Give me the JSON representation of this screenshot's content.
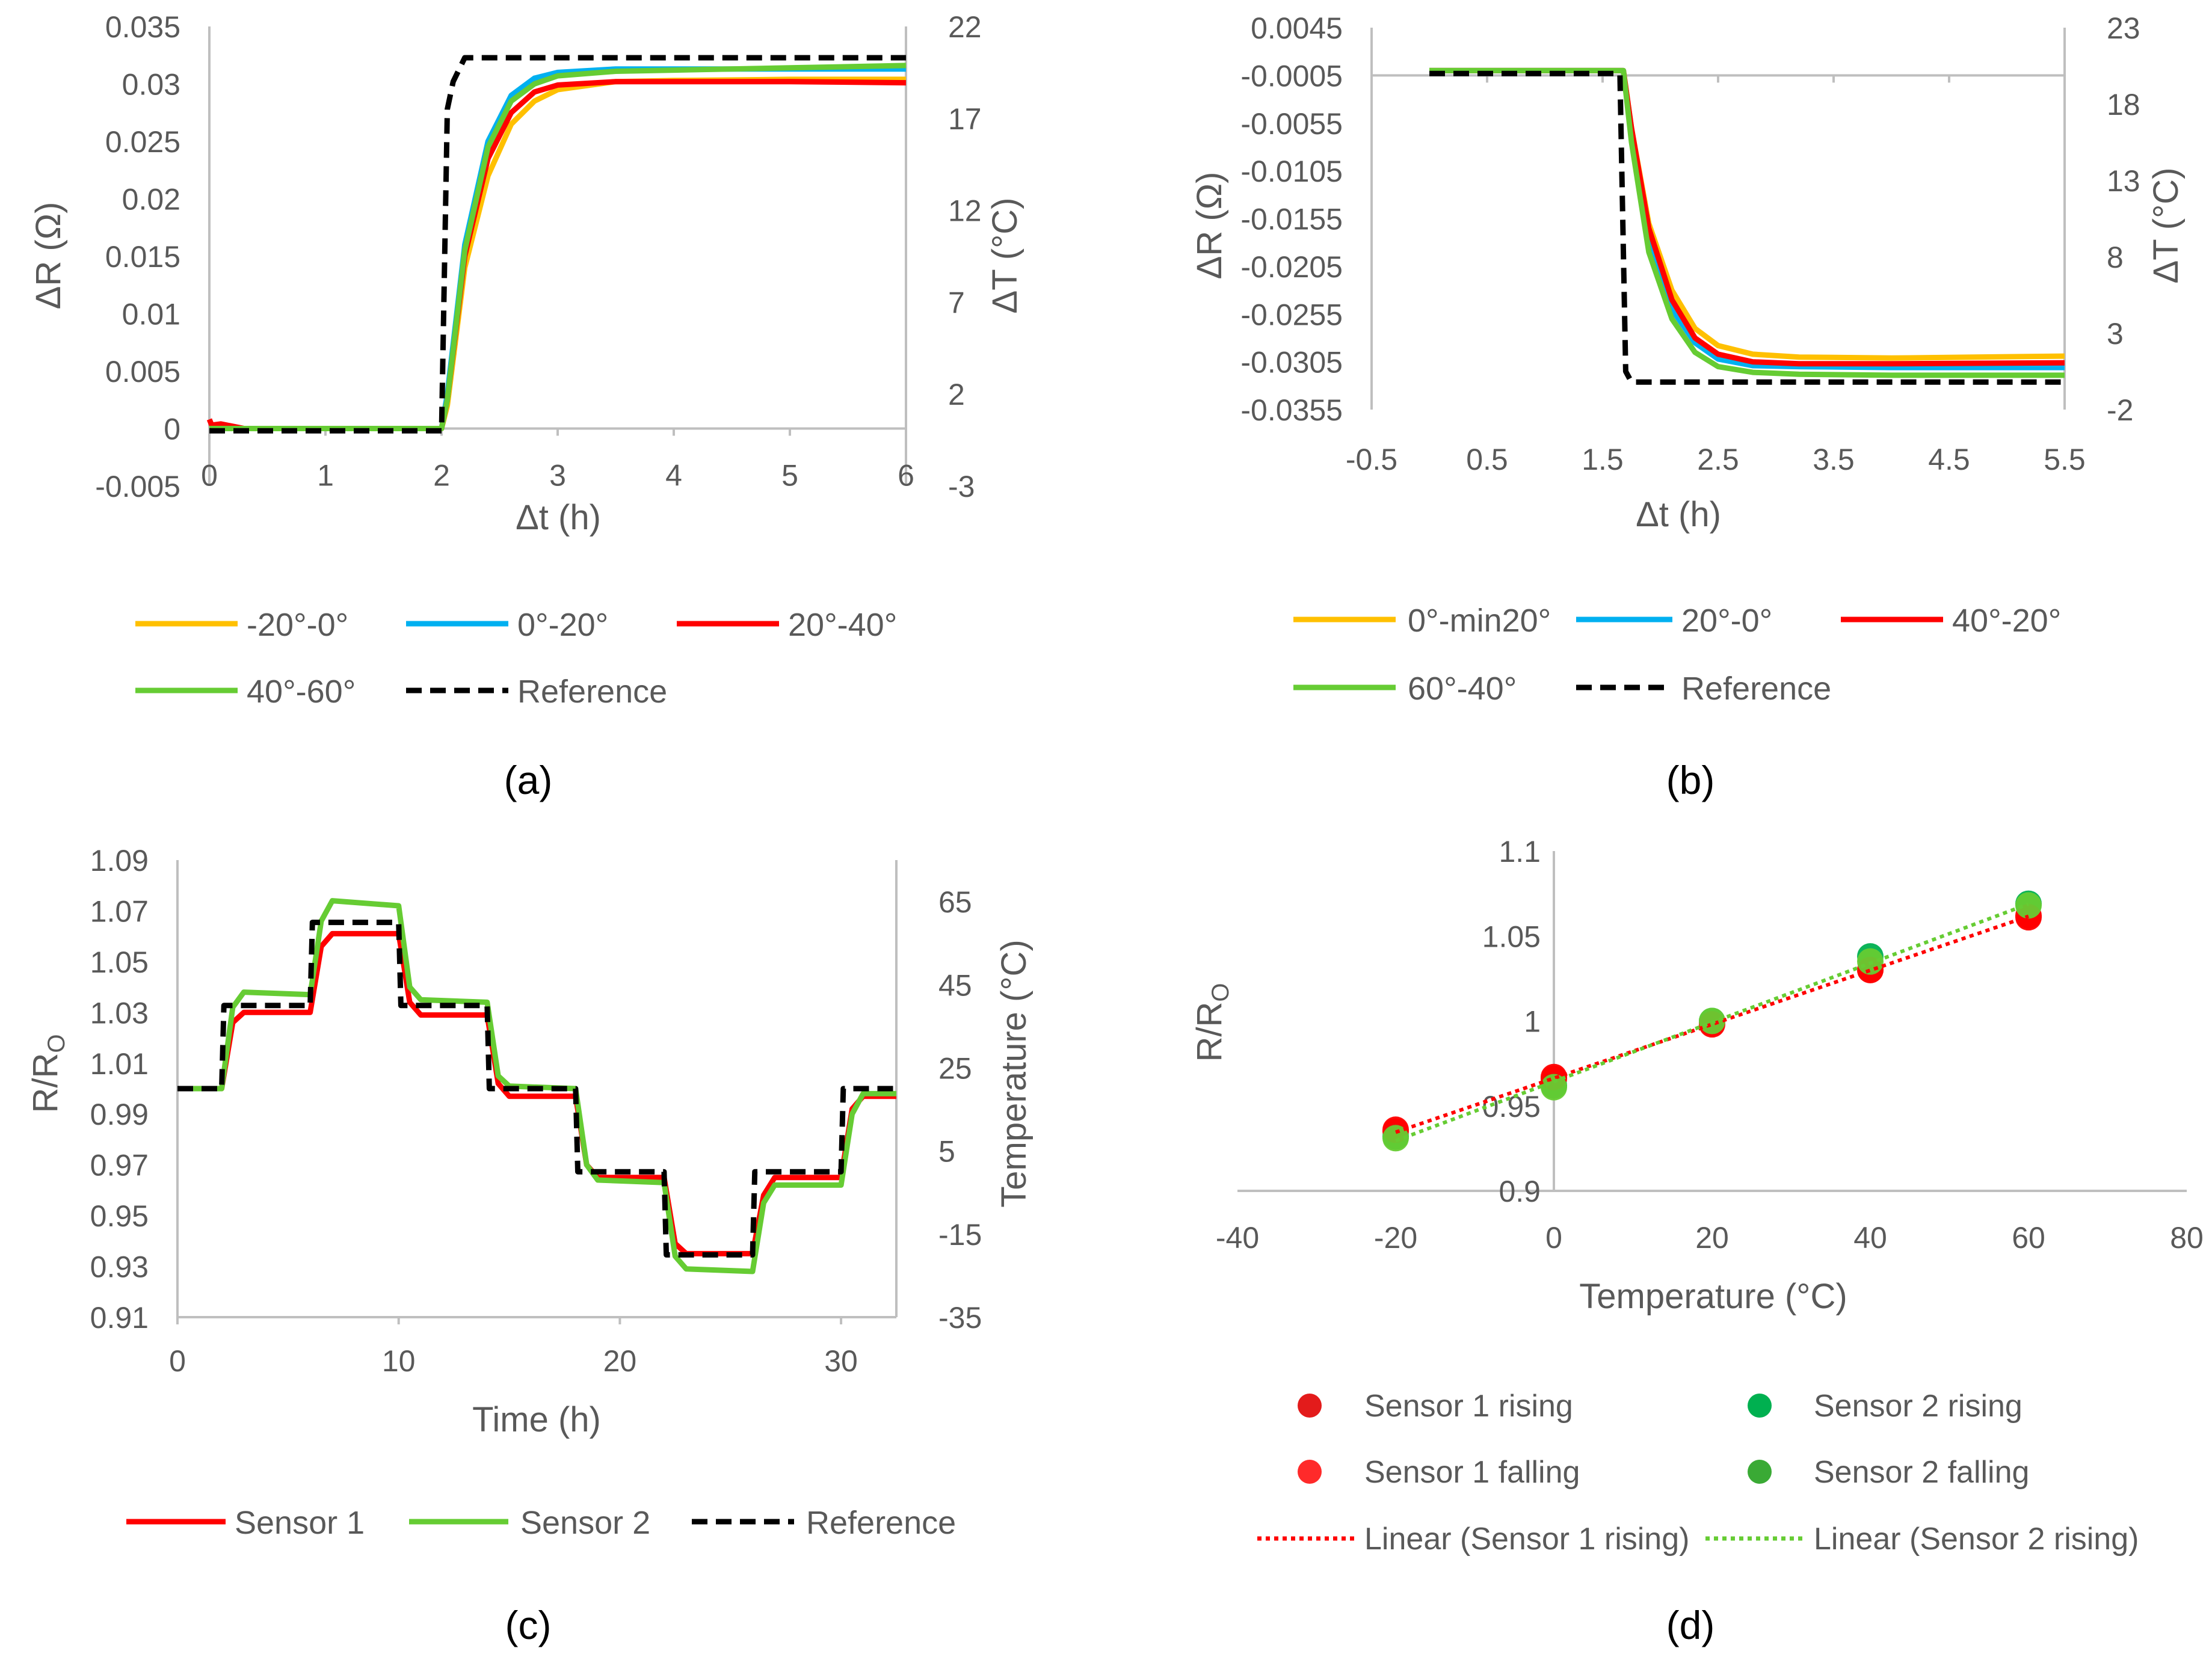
{
  "colors": {
    "orange": "#FFC000",
    "blue": "#00B0F0",
    "red": "#FF0000",
    "green": "#66CC33",
    "green_dark": "#00B050",
    "black": "#000000",
    "axis": "#BFBFBF",
    "tick_text": "#595959"
  },
  "panel_labels": [
    "(a)",
    "(b)",
    "(c)",
    "(d)"
  ],
  "chart_data": [
    {
      "panel": "a",
      "type": "line",
      "xlabel": "Δt (h)",
      "ylabel": "ΔR (Ω)",
      "y2label": "ΔT (°C)",
      "xlim": [
        0,
        6
      ],
      "ylim": [
        -0.005,
        0.035
      ],
      "y2lim": [
        -3,
        22
      ],
      "xticks": [
        "0",
        "1",
        "2",
        "3",
        "4",
        "5",
        "6"
      ],
      "yticks": [
        "-0.005",
        "0",
        "0.005",
        "0.01",
        "0.015",
        "0.02",
        "0.025",
        "0.03",
        "0.035"
      ],
      "y2ticks": [
        "-3",
        "2",
        "7",
        "12",
        "17",
        "22"
      ],
      "series": [
        {
          "name": "-20°-0°",
          "color": "orange",
          "axis": "y",
          "style": "solid",
          "x": [
            0,
            2.0,
            2.05,
            2.2,
            2.4,
            2.6,
            2.8,
            3.0,
            3.5,
            4,
            5,
            6
          ],
          "values": [
            0,
            0,
            0.002,
            0.014,
            0.022,
            0.0265,
            0.0285,
            0.0295,
            0.0302,
            0.0303,
            0.0304,
            0.0304
          ]
        },
        {
          "name": "0°-20°",
          "color": "blue",
          "axis": "y",
          "style": "solid",
          "x": [
            0,
            2.0,
            2.05,
            2.2,
            2.4,
            2.6,
            2.8,
            3.0,
            3.5,
            4,
            5,
            6
          ],
          "values": [
            0,
            0,
            0.003,
            0.016,
            0.025,
            0.029,
            0.0305,
            0.031,
            0.0313,
            0.0313,
            0.0313,
            0.0313
          ]
        },
        {
          "name": "20°-40°",
          "color": "red",
          "axis": "y",
          "style": "solid",
          "x": [
            0,
            0.02,
            0.1,
            0.3,
            2.0,
            2.05,
            2.2,
            2.4,
            2.6,
            2.8,
            3.0,
            3.5,
            4,
            5,
            6
          ],
          "values": [
            0.0008,
            0.0003,
            0.0004,
            0,
            0,
            0.0025,
            0.015,
            0.0235,
            0.0275,
            0.0293,
            0.0299,
            0.0302,
            0.0302,
            0.0302,
            0.0301
          ]
        },
        {
          "name": "40°-60°",
          "color": "green",
          "axis": "y",
          "style": "solid",
          "x": [
            0,
            2.0,
            2.05,
            2.2,
            2.4,
            2.6,
            2.8,
            3.0,
            3.5,
            4,
            5,
            6
          ],
          "values": [
            0,
            0,
            0.0025,
            0.0155,
            0.0245,
            0.0285,
            0.03,
            0.0307,
            0.0311,
            0.0312,
            0.0314,
            0.0316
          ]
        },
        {
          "name": "Reference",
          "color": "black",
          "axis": "y2",
          "style": "dash",
          "x": [
            0,
            2.0,
            2.05,
            2.1,
            2.2,
            6
          ],
          "values": [
            0,
            0,
            17.5,
            19.0,
            20.3,
            20.3
          ]
        }
      ],
      "legend": {
        "position": "bottom",
        "entries": [
          "-20°-0°",
          "0°-20°",
          "20°-40°",
          "40°-60°",
          "Reference"
        ]
      }
    },
    {
      "panel": "b",
      "type": "line",
      "xlabel": "Δt (h)",
      "ylabel": "ΔR (Ω)",
      "y2label": "ΔT (°C)",
      "xlim": [
        -0.5,
        5.5
      ],
      "ylim": [
        -0.0355,
        0.0045
      ],
      "y2lim": [
        -2,
        23
      ],
      "xticks": [
        "-0.5",
        "0.5",
        "1.5",
        "2.5",
        "3.5",
        "4.5",
        "5.5"
      ],
      "yticks": [
        "0.0045",
        "-0.0005",
        "-0.0055",
        "-0.0105",
        "-0.0155",
        "-0.0205",
        "-0.0255",
        "-0.0305",
        "-0.0355"
      ],
      "y2ticks": [
        "23",
        "18",
        "13",
        "8",
        "3",
        "-2"
      ],
      "series": [
        {
          "name": "0°-min20°",
          "color": "orange",
          "axis": "y",
          "style": "solid",
          "x": [
            0,
            1.68,
            1.75,
            1.9,
            2.1,
            2.3,
            2.5,
            2.8,
            3.2,
            4,
            5.5
          ],
          "values": [
            0,
            0,
            -0.006,
            -0.016,
            -0.023,
            -0.027,
            -0.0288,
            -0.0297,
            -0.03,
            -0.0301,
            -0.0299
          ]
        },
        {
          "name": "20°-0°",
          "color": "blue",
          "axis": "y",
          "style": "solid",
          "x": [
            0,
            1.68,
            1.75,
            1.9,
            2.1,
            2.3,
            2.5,
            2.8,
            3.2,
            4,
            5.5
          ],
          "values": [
            0,
            0,
            -0.007,
            -0.018,
            -0.025,
            -0.0285,
            -0.0302,
            -0.0309,
            -0.031,
            -0.0311,
            -0.0311
          ]
        },
        {
          "name": "40°-20°",
          "color": "red",
          "axis": "y",
          "style": "solid",
          "x": [
            0,
            1.68,
            1.75,
            1.9,
            2.1,
            2.3,
            2.5,
            2.8,
            3.2,
            4,
            5.5
          ],
          "values": [
            0,
            0,
            -0.006,
            -0.0165,
            -0.024,
            -0.028,
            -0.0297,
            -0.0305,
            -0.0307,
            -0.0307,
            -0.0306
          ]
        },
        {
          "name": "60°-40°",
          "color": "green",
          "axis": "y",
          "style": "solid",
          "x": [
            0,
            1.68,
            1.75,
            1.9,
            2.1,
            2.3,
            2.5,
            2.8,
            3.2,
            4,
            5.5
          ],
          "values": [
            0,
            0,
            -0.0075,
            -0.019,
            -0.026,
            -0.0295,
            -0.031,
            -0.0316,
            -0.0318,
            -0.0319,
            -0.0319
          ]
        },
        {
          "name": "Reference",
          "color": "black",
          "axis": "y2",
          "style": "dash",
          "x": [
            0,
            1.65,
            1.7,
            1.75,
            5.5
          ],
          "values": [
            20,
            20,
            0.5,
            -0.2,
            -0.2
          ]
        }
      ],
      "legend": {
        "position": "bottom",
        "entries": [
          "0°-min20°",
          "20°-0°",
          "40°-20°",
          "60°-40°",
          "Reference"
        ]
      }
    },
    {
      "panel": "c",
      "type": "line",
      "xlabel": "Time (h)",
      "ylabel": "R/RO",
      "y2label": "Temperature (°C)",
      "xlim": [
        0,
        32.5
      ],
      "ylim": [
        0.91,
        1.09
      ],
      "y2lim": [
        -35,
        75
      ],
      "xticks": [
        "0",
        "10",
        "20",
        "30"
      ],
      "yticks": [
        "0.91",
        "0.93",
        "0.95",
        "0.97",
        "0.99",
        "1.01",
        "1.03",
        "1.05",
        "1.07",
        "1.09"
      ],
      "y2ticks": [
        "-35",
        "-15",
        "5",
        "25",
        "45",
        "65"
      ],
      "series": [
        {
          "name": "Sensor 1",
          "color": "red",
          "axis": "y",
          "style": "solid",
          "x": [
            0,
            2,
            2.5,
            3,
            6,
            6.5,
            7,
            10,
            10.5,
            11,
            14,
            14.5,
            15,
            18,
            18.5,
            19,
            22,
            22.5,
            23,
            26,
            26.5,
            27,
            30,
            30.5,
            31,
            32.5
          ],
          "values": [
            1.0,
            1.0,
            1.026,
            1.03,
            1.03,
            1.056,
            1.061,
            1.061,
            1.034,
            1.029,
            1.029,
            1.002,
            0.997,
            0.997,
            0.97,
            0.965,
            0.965,
            0.939,
            0.935,
            0.935,
            0.958,
            0.965,
            0.965,
            0.992,
            0.997,
            0.997
          ]
        },
        {
          "name": "Sensor 2",
          "color": "green",
          "axis": "y",
          "style": "solid",
          "x": [
            0,
            2,
            2.5,
            3,
            6,
            6.5,
            7,
            10,
            10.5,
            11,
            14,
            14.5,
            15,
            18,
            18.5,
            19,
            22,
            22.5,
            23,
            26,
            26.5,
            27,
            30,
            30.5,
            31,
            32.5
          ],
          "values": [
            1.0,
            1.0,
            1.032,
            1.038,
            1.037,
            1.066,
            1.074,
            1.072,
            1.04,
            1.035,
            1.034,
            1.005,
            1.001,
            1.0,
            0.97,
            0.964,
            0.963,
            0.934,
            0.929,
            0.928,
            0.955,
            0.962,
            0.962,
            0.99,
            0.998,
            0.998
          ]
        },
        {
          "name": "Reference",
          "color": "black",
          "axis": "y2",
          "style": "dash",
          "x": [
            0,
            2,
            2.1,
            6,
            6.1,
            10,
            10.1,
            14,
            14.1,
            18,
            18.1,
            22,
            22.1,
            26,
            26.1,
            30,
            30.1,
            32.5
          ],
          "values": [
            20,
            20,
            40,
            40,
            60,
            60,
            40,
            40,
            20,
            20,
            0,
            0,
            -20,
            -20,
            0,
            0,
            20,
            20
          ]
        }
      ],
      "legend": {
        "position": "bottom",
        "entries": [
          "Sensor 1",
          "Sensor 2",
          "Reference"
        ]
      }
    },
    {
      "panel": "d",
      "type": "scatter",
      "xlabel": "Temperature (°C)",
      "ylabel": "R/RO",
      "xlim": [
        -40,
        80
      ],
      "ylim": [
        0.9,
        1.1
      ],
      "xticks": [
        "-40",
        "-20",
        "0",
        "20",
        "40",
        "60",
        "80"
      ],
      "yticks": [
        "0.9",
        "0.95",
        "1",
        "1.05",
        "1.1"
      ],
      "series": [
        {
          "name": "Sensor 1 rising",
          "color": "red",
          "marker": "dot",
          "x": [
            -20,
            0,
            20,
            40,
            60
          ],
          "values": [
            0.935,
            0.966,
            0.999,
            1.03,
            1.062
          ]
        },
        {
          "name": "Sensor 2 rising",
          "color": "green_dark",
          "marker": "dot",
          "x": [
            -20,
            0,
            20,
            40,
            60
          ],
          "values": [
            0.932,
            0.962,
            1.0,
            1.038,
            1.069
          ]
        },
        {
          "name": "Sensor 1 falling",
          "color": "red",
          "marker": "dot",
          "x": [
            -20,
            0,
            20,
            40,
            60
          ],
          "values": [
            0.936,
            0.967,
            0.998,
            1.03,
            1.061
          ]
        },
        {
          "name": "Sensor 2 falling",
          "color": "green",
          "marker": "dot",
          "x": [
            -20,
            0,
            20,
            40,
            60
          ],
          "values": [
            0.931,
            0.961,
            1.0,
            1.035,
            1.068
          ]
        },
        {
          "name": "Linear (Sensor 1 rising)",
          "color": "red",
          "style": "dot",
          "x": [
            -20,
            60
          ],
          "values": [
            0.9345,
            1.0616
          ]
        },
        {
          "name": "Linear (Sensor 2 rising)",
          "color": "green",
          "style": "dot",
          "x": [
            -20,
            60
          ],
          "values": [
            0.9295,
            1.0688
          ]
        }
      ],
      "legend": {
        "position": "bottom",
        "entries": [
          "Sensor 1 rising",
          "Sensor 2 rising",
          "Sensor 1 falling",
          "Sensor 2 falling",
          "Linear (Sensor 1 rising)",
          "Linear (Sensor 2 rising)"
        ]
      }
    }
  ]
}
